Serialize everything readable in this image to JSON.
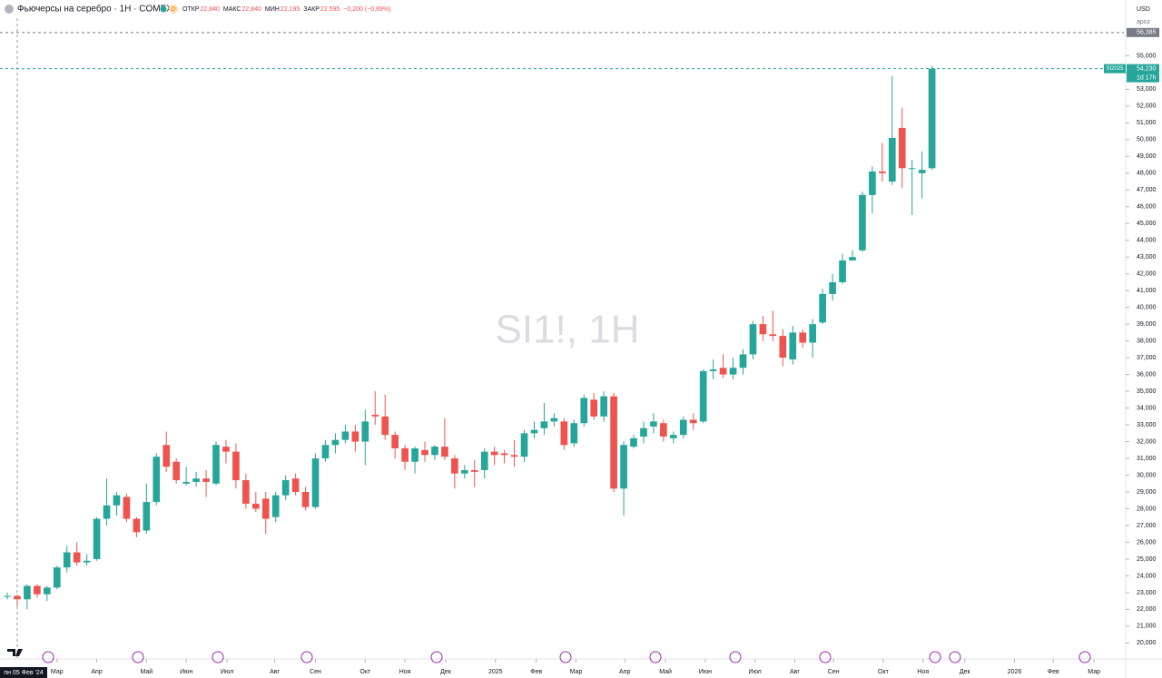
{
  "chart_data": {
    "type": "candlestick",
    "title": "Фьючерсы на серебро · 1Н · COMEX",
    "interval_badge": "D",
    "ohlc_summary": [
      {
        "label": "ОТКР",
        "value": "22,840"
      },
      {
        "label": "МАКС",
        "value": "22,840"
      },
      {
        "label": "МИН",
        "value": "22,195"
      },
      {
        "label": "ЗАКР",
        "value": "22,595"
      }
    ],
    "change": "−0,200 (−0,89%)",
    "watermark": "SI1!, 1H",
    "currency": "USD",
    "scale_mode": "apoz",
    "crosshair_date": "пн 05 Фев '24",
    "up_color": "#26a69a",
    "down_color": "#ef5350",
    "grid": false,
    "ylim": [
      19100,
      56700
    ],
    "xlim": [
      -0.73,
      112.3
    ],
    "price_lines": [
      {
        "value": 56385,
        "label": "56,385",
        "color": "#787b86"
      },
      {
        "value": 54230,
        "label": "54,230",
        "name": "SI2025",
        "countdown": "1d 17h",
        "color": "#26a69a"
      }
    ],
    "yticks": [
      {
        "value": 20000,
        "label": "20,000"
      },
      {
        "value": 21000,
        "label": "21,000"
      },
      {
        "value": 22000,
        "label": "22,000"
      },
      {
        "value": 23000,
        "label": "23,000"
      },
      {
        "value": 24000,
        "label": "24,000"
      },
      {
        "value": 25000,
        "label": "25,000"
      },
      {
        "value": 26000,
        "label": "26,000"
      },
      {
        "value": 27000,
        "label": "27,000"
      },
      {
        "value": 28000,
        "label": "28,000"
      },
      {
        "value": 29000,
        "label": "29,000"
      },
      {
        "value": 30000,
        "label": "30,000"
      },
      {
        "value": 31000,
        "label": "31,000"
      },
      {
        "value": 32000,
        "label": "32,000"
      },
      {
        "value": 33000,
        "label": "33,000"
      },
      {
        "value": 34000,
        "label": "34,000"
      },
      {
        "value": 35000,
        "label": "35,000"
      },
      {
        "value": 36000,
        "label": "36,000"
      },
      {
        "value": 37000,
        "label": "37,000"
      },
      {
        "value": 38000,
        "label": "38,000"
      },
      {
        "value": 39000,
        "label": "39,000"
      },
      {
        "value": 40000,
        "label": "40,000"
      },
      {
        "value": 41000,
        "label": "41,000"
      },
      {
        "value": 42000,
        "label": "42,000"
      },
      {
        "value": 43000,
        "label": "43,000"
      },
      {
        "value": 44000,
        "label": "44,000"
      },
      {
        "value": 45000,
        "label": "45,000"
      },
      {
        "value": 46000,
        "label": "46,000"
      },
      {
        "value": 47000,
        "label": "47,000"
      },
      {
        "value": 48000,
        "label": "48,000"
      },
      {
        "value": 49000,
        "label": "49,000"
      },
      {
        "value": 50000,
        "label": "50,000"
      },
      {
        "value": 51000,
        "label": "51,000"
      },
      {
        "value": 52000,
        "label": "52,000"
      },
      {
        "value": 53000,
        "label": "53,000"
      },
      {
        "value": 54000,
        "label": "54,000"
      },
      {
        "value": 55000,
        "label": "55,000"
      }
    ],
    "xticks": [
      {
        "value": 5.0,
        "label": "Мар"
      },
      {
        "value": 9.0,
        "label": "Апр"
      },
      {
        "value": 14.0,
        "label": "Май"
      },
      {
        "value": 18.0,
        "label": "Июн"
      },
      {
        "value": 22.1,
        "label": "Июл"
      },
      {
        "value": 26.9,
        "label": "Авг"
      },
      {
        "value": 31.0,
        "label": "Сен"
      },
      {
        "value": 36.0,
        "label": "Окт"
      },
      {
        "value": 40.0,
        "label": "Ноя"
      },
      {
        "value": 44.1,
        "label": "Дек"
      },
      {
        "value": 49.1,
        "label": "2025"
      },
      {
        "value": 53.2,
        "label": "Фев"
      },
      {
        "value": 57.2,
        "label": "Мар"
      },
      {
        "value": 62.1,
        "label": "Апр"
      },
      {
        "value": 66.2,
        "label": "Май"
      },
      {
        "value": 70.2,
        "label": "Июн"
      },
      {
        "value": 75.2,
        "label": "Июл"
      },
      {
        "value": 79.2,
        "label": "Авг"
      },
      {
        "value": 83.1,
        "label": "Сен"
      },
      {
        "value": 88.1,
        "label": "Окт"
      },
      {
        "value": 92.1,
        "label": "Ноя"
      },
      {
        "value": 96.3,
        "label": "Дек"
      },
      {
        "value": 101.3,
        "label": "2026"
      },
      {
        "value": 105.2,
        "label": "Фев"
      },
      {
        "value": 109.3,
        "label": "Мар"
      }
    ],
    "x": [
      0,
      1,
      2,
      3,
      4,
      5,
      6,
      7,
      8,
      9,
      10,
      11,
      12,
      13,
      14,
      15,
      16,
      17,
      18,
      19,
      20,
      21,
      22,
      23,
      24,
      25,
      26,
      27,
      28,
      29,
      30,
      31,
      32,
      33,
      34,
      35,
      36,
      37,
      38,
      39,
      40,
      41,
      42,
      43,
      44,
      45,
      46,
      47,
      48,
      49,
      50,
      51,
      52,
      53,
      54,
      55,
      56,
      57,
      58,
      59,
      60,
      61,
      62,
      63,
      64,
      65,
      66,
      67,
      68,
      69,
      70,
      71,
      72,
      73,
      74,
      75,
      76,
      77,
      78,
      79,
      80,
      81,
      82,
      83,
      84,
      85,
      86,
      87,
      88,
      89,
      90,
      91,
      92,
      93
    ],
    "open": [
      22750,
      22800,
      22600,
      23400,
      22900,
      23300,
      24500,
      25400,
      24800,
      25000,
      27400,
      28200,
      28700,
      27400,
      26700,
      28400,
      31800,
      30800,
      29500,
      29600,
      29800,
      29500,
      31700,
      31400,
      29700,
      28300,
      28600,
      27500,
      28800,
      29800,
      29000,
      28100,
      31000,
      31800,
      32100,
      32600,
      32000,
      33600,
      33500,
      32400,
      31600,
      30800,
      31500,
      31200,
      31700,
      31000,
      30100,
      30300,
      30300,
      31400,
      31300,
      31200,
      31100,
      32500,
      32800,
      33200,
      33200,
      31900,
      33100,
      34500,
      33500,
      34700,
      29200,
      31700,
      32300,
      32900,
      33100,
      32200,
      32400,
      33300,
      33200,
      36200,
      36400,
      36000,
      36400,
      37200,
      39000,
      38400,
      38300,
      36900,
      38500,
      37900,
      39100,
      40800,
      41500,
      42800,
      43400,
      46700,
      48100,
      47500,
      50700,
      48300,
      48000,
      48300
    ],
    "high": [
      23000,
      22900,
      23500,
      23500,
      23400,
      24600,
      25800,
      26000,
      25300,
      27500,
      29800,
      29000,
      28900,
      27500,
      29500,
      31300,
      32600,
      31000,
      30500,
      30200,
      30300,
      32000,
      32100,
      31900,
      30100,
      29000,
      29000,
      29000,
      30000,
      30100,
      29300,
      31300,
      32100,
      32500,
      33000,
      33000,
      33900,
      35000,
      34800,
      32600,
      31800,
      31700,
      32000,
      31800,
      33400,
      31200,
      30600,
      30900,
      31600,
      31700,
      31500,
      32100,
      32700,
      33200,
      34300,
      33700,
      33400,
      33300,
      34800,
      34900,
      35000,
      34900,
      32000,
      32400,
      33200,
      33700,
      33300,
      32600,
      33500,
      33700,
      36300,
      36900,
      37200,
      37000,
      37500,
      39200,
      39500,
      39800,
      38700,
      38900,
      38700,
      39300,
      41100,
      42000,
      43200,
      43400,
      46900,
      48400,
      49800,
      53800,
      51900,
      48800,
      49300,
      54400
    ],
    "low": [
      22600,
      22200,
      22000,
      22700,
      22500,
      23200,
      24200,
      24600,
      24600,
      24900,
      27000,
      27600,
      27200,
      26300,
      26500,
      28200,
      30200,
      29500,
      29400,
      29300,
      28700,
      29400,
      30700,
      29200,
      28000,
      27800,
      26500,
      27200,
      28500,
      28800,
      27900,
      28000,
      30800,
      31300,
      31900,
      31400,
      30600,
      33000,
      32100,
      31000,
      30300,
      30100,
      30800,
      30900,
      30900,
      29200,
      29800,
      29300,
      29800,
      30600,
      30700,
      30500,
      30800,
      32200,
      32400,
      32900,
      31500,
      31700,
      32900,
      33300,
      33200,
      29000,
      27600,
      31600,
      31900,
      32500,
      32000,
      31900,
      32200,
      32700,
      33100,
      35700,
      35800,
      35700,
      36000,
      36900,
      38000,
      38000,
      36500,
      36600,
      37600,
      37000,
      39000,
      40400,
      41400,
      42800,
      43300,
      45600,
      47500,
      47300,
      47100,
      45500,
      46500,
      48200
    ],
    "close": [
      22800,
      22600,
      23400,
      22900,
      23300,
      24500,
      25400,
      24800,
      24900,
      27400,
      28200,
      28800,
      27400,
      26600,
      28400,
      31100,
      30500,
      29700,
      29600,
      29800,
      29600,
      31800,
      31400,
      29700,
      28300,
      28000,
      27400,
      28800,
      29700,
      29000,
      28100,
      31000,
      31800,
      32100,
      32600,
      32000,
      33200,
      33500,
      32400,
      31600,
      30800,
      31600,
      31200,
      31700,
      31100,
      30100,
      30300,
      30200,
      31400,
      31200,
      31200,
      31100,
      32500,
      32700,
      33200,
      33400,
      31800,
      33100,
      34600,
      33500,
      34700,
      29200,
      31800,
      32200,
      32800,
      33200,
      32300,
      32400,
      33300,
      33100,
      36200,
      36300,
      36000,
      36400,
      37200,
      39000,
      38400,
      38300,
      37000,
      38500,
      37900,
      39000,
      40800,
      41500,
      42800,
      43000,
      46700,
      48100,
      48000,
      50100,
      48300,
      48300,
      48200,
      54230
    ]
  }
}
